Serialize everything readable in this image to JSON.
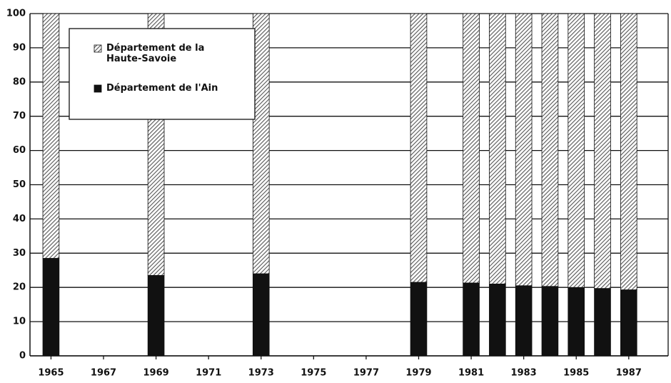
{
  "chart_data": {
    "type": "stacked_bar",
    "x": [
      1965,
      1969,
      1973,
      1979,
      1981,
      1982,
      1983,
      1984,
      1985,
      1986,
      1987
    ],
    "series": [
      {
        "name": "Département de l'Ain",
        "color": "#111111",
        "pattern": "solid",
        "values": [
          28.5,
          23.5,
          24,
          21.5,
          21.3,
          21,
          20.5,
          20.3,
          20,
          19.7,
          19.3
        ]
      },
      {
        "name": "Département de la Haute-Savoie",
        "color": "#555555",
        "pattern": "hatch",
        "values": [
          71.5,
          76.5,
          76,
          78.5,
          78.7,
          79,
          79.5,
          79.7,
          80,
          80.3,
          80.7
        ]
      }
    ],
    "xlim": [
      1964.2,
      1988.5
    ],
    "xticks": [
      1965,
      1967,
      1969,
      1971,
      1973,
      1975,
      1977,
      1979,
      1981,
      1983,
      1985,
      1987
    ],
    "ylim": [
      0,
      100
    ],
    "yticks": [
      0,
      10,
      20,
      30,
      40,
      50,
      60,
      70,
      80,
      90,
      100
    ],
    "grid": true,
    "legend": "top-left"
  }
}
